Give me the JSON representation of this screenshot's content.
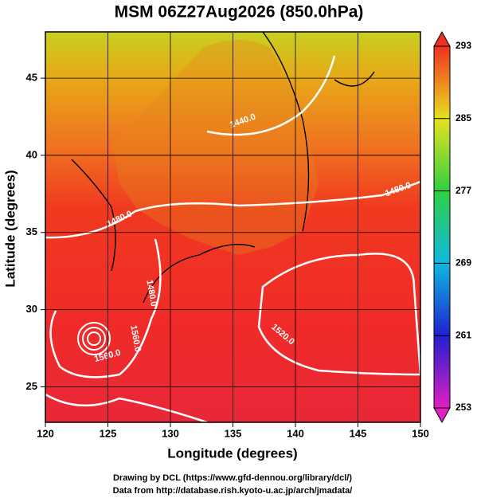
{
  "chart_data": {
    "type": "map",
    "title": "MSM 06Z27Aug2026 (850.0hPa)",
    "xlabel": "Longitude (degrees)",
    "ylabel": "Latitude  (degrees)",
    "xlim": [
      120,
      150
    ],
    "ylim": [
      22.7,
      48
    ],
    "xticks": [
      120,
      125,
      130,
      135,
      140,
      145,
      150
    ],
    "yticks": [
      25,
      30,
      35,
      40,
      45
    ],
    "grid": true,
    "colorbar": {
      "lim": [
        253,
        293
      ],
      "ticks": [
        253,
        261,
        269,
        277,
        285,
        293
      ]
    },
    "contour_labels": [
      "1440.0",
      "1480.0",
      "1480.0",
      "1480.0",
      "1520.0",
      "1560.0",
      "1560.0"
    ]
  },
  "footer": [
    "Drawing by DCL (https://www.gfd-dennou.org/library/dcl/)",
    "Data from http://database.rish.kyoto-u.ac.jp/arch/jmadata/"
  ]
}
